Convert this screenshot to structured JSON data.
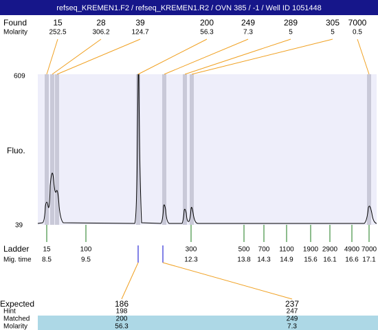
{
  "header": {
    "title": "refseq_KREMEN1.F2 / refseq_KREMEN1.R2 / OVN 385 / -1 / Well ID 1051448"
  },
  "found": {
    "label": "Found",
    "molarity_label": "Molarity",
    "peaks": [
      {
        "size": 15,
        "molarity": 252.5
      },
      {
        "size": 28,
        "molarity": 306.2
      },
      {
        "size": 39,
        "molarity": 124.7
      },
      {
        "size": 200,
        "molarity": 56.3
      },
      {
        "size": 249,
        "molarity": 7.3
      },
      {
        "size": 289,
        "molarity": 5
      },
      {
        "size": 305,
        "molarity": 5
      },
      {
        "size": 7000,
        "molarity": 0.5
      }
    ]
  },
  "plot": {
    "y_label": "Fluo.",
    "y_max": 609,
    "y_min": 39
  },
  "ladder": {
    "label": "Ladder",
    "mig_time_label": "Mig. time",
    "items": [
      {
        "size": 15,
        "mig_time": 8.5
      },
      {
        "size": 100,
        "mig_time": 9.5
      },
      {
        "size": 300,
        "mig_time": 12.3
      },
      {
        "size": 500,
        "mig_time": 13.8
      },
      {
        "size": 700,
        "mig_time": 14.3
      },
      {
        "size": 1100,
        "mig_time": 14.9
      },
      {
        "size": 1900,
        "mig_time": 15.6
      },
      {
        "size": 2900,
        "mig_time": 16.1
      },
      {
        "size": 4900,
        "mig_time": 16.6
      },
      {
        "size": 7000,
        "mig_time": 17.1
      }
    ]
  },
  "expected": {
    "labels": [
      "Expected",
      "Hint",
      "Matched",
      "Molarity"
    ],
    "columns": [
      {
        "expected": 186,
        "hint": 198,
        "matched": 200,
        "molarity": 56.3
      },
      {
        "expected": 237,
        "hint": 247,
        "matched": 249,
        "molarity": 7.3
      }
    ]
  }
}
